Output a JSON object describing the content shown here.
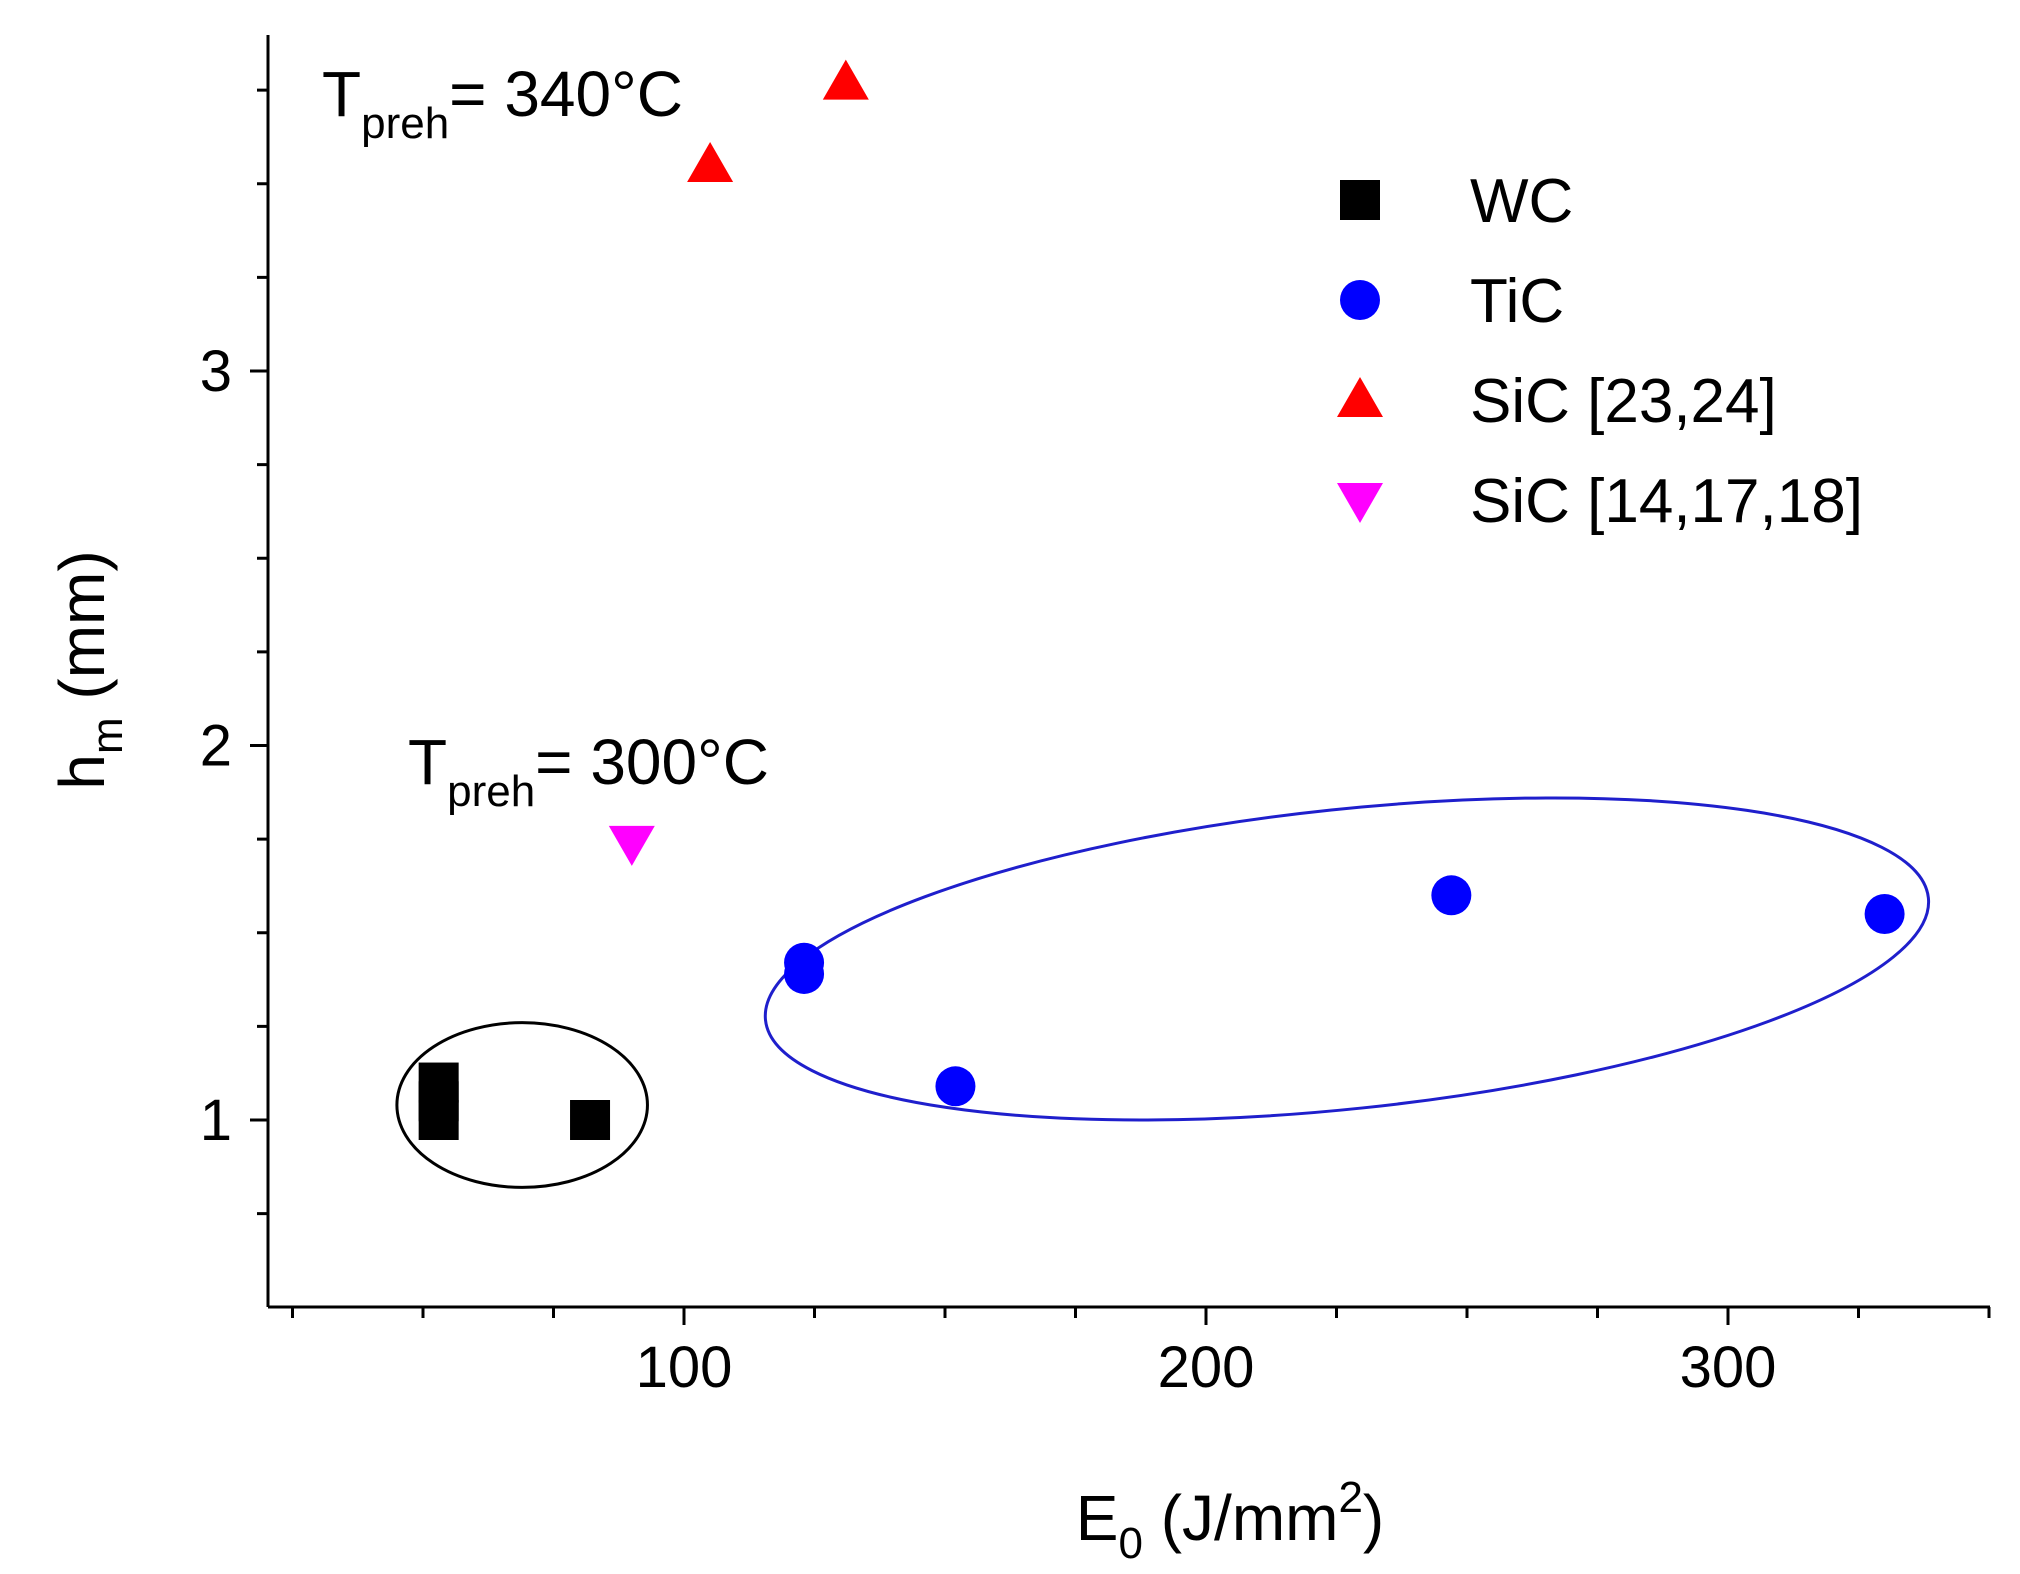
{
  "chart_data": {
    "type": "scatter",
    "xlabel": {
      "main": "E",
      "sub": "0",
      "rest": " (J/mm",
      "sup": "2",
      "close": ")"
    },
    "ylabel": {
      "main": "h",
      "sub": "m",
      "rest": "  (mm)"
    },
    "xlim": [
      25,
      358
    ],
    "ylim": [
      0.5,
      3.8
    ],
    "x_ticks": [
      100,
      200,
      300
    ],
    "x_tick_labels": [
      "100",
      "200",
      "300"
    ],
    "y_ticks": [
      1,
      2,
      3
    ],
    "y_tick_labels": [
      "1",
      "2",
      "3"
    ],
    "x_minor_step": 25,
    "y_minor_step": 0.25,
    "legend_placement": "top-right",
    "series": [
      {
        "name": "WC",
        "marker": "square",
        "color": "#000000",
        "points": [
          [
            53,
            1.0
          ],
          [
            53,
            1.05
          ],
          [
            53,
            1.1
          ],
          [
            82,
            1.0
          ]
        ]
      },
      {
        "name": "TiC",
        "marker": "circle",
        "color": "#0000ff",
        "points": [
          [
            123,
            1.42
          ],
          [
            123,
            1.39
          ],
          [
            152,
            1.09
          ],
          [
            247,
            1.6
          ],
          [
            330,
            1.55
          ]
        ]
      },
      {
        "name": "SiC [23,24]",
        "marker": "triangle-up",
        "color": "#ff0000",
        "points": [
          [
            105,
            3.55
          ],
          [
            131,
            3.77
          ]
        ]
      },
      {
        "name": "SiC [14,17,18]",
        "marker": "triangle-down",
        "color": "#ff00ff",
        "points": [
          [
            90,
            1.74
          ]
        ]
      }
    ],
    "annotations": [
      {
        "main": "T",
        "sub": "preh",
        "rest": "= 340°C"
      },
      {
        "main": "T",
        "sub": "preh",
        "rest": "= 300°C"
      }
    ],
    "ellipses": [
      {
        "color": "#000000",
        "cx": 69,
        "cy": 1.04,
        "rx": 24,
        "ry": 0.22,
        "rotation": 0
      },
      {
        "color": "#1f1fcc",
        "cx": 227,
        "cy": 1.43,
        "rx": 112,
        "ry": 0.4,
        "rotation": -6
      }
    ]
  }
}
